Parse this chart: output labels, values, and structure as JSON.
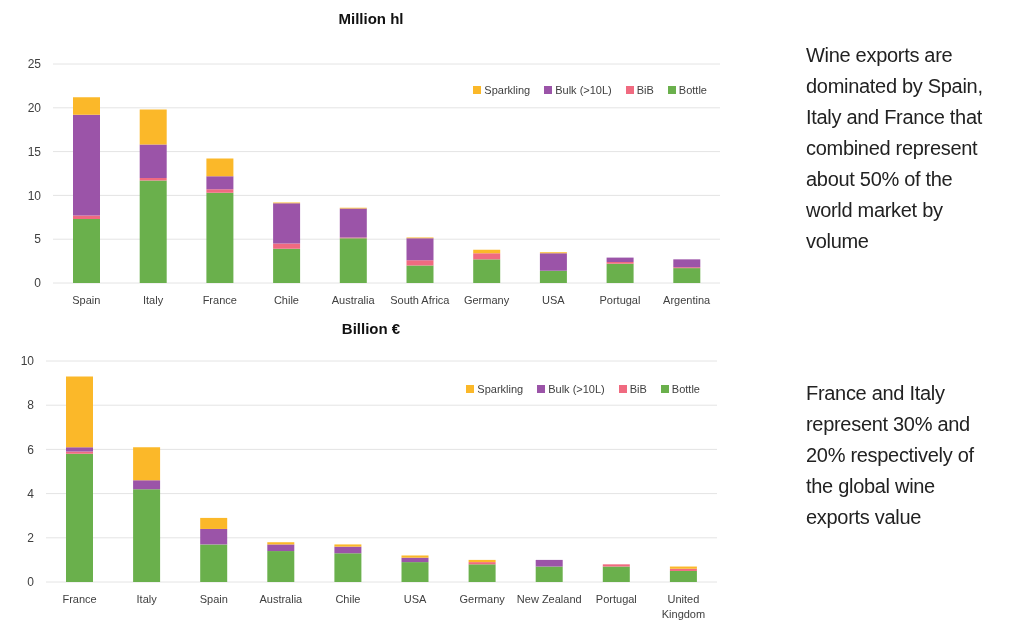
{
  "chart_data": [
    {
      "type": "bar",
      "stacked": true,
      "title": "Million hl",
      "categories": [
        "Spain",
        "Italy",
        "France",
        "Chile",
        "Australia",
        "South Africa",
        "Germany",
        "USA",
        "Portugal",
        "Argentina"
      ],
      "series": [
        {
          "name": "Bottle",
          "color": "#6ab04c",
          "values": [
            7.3,
            11.7,
            10.3,
            3.9,
            5.1,
            2.0,
            2.7,
            1.4,
            2.2,
            1.7
          ]
        },
        {
          "name": "BiB",
          "color": "#f06a80",
          "values": [
            0.4,
            0.3,
            0.4,
            0.6,
            0.1,
            0.6,
            0.7,
            null,
            0.2,
            0.1
          ]
        },
        {
          "name": "Bulk (>10L)",
          "color": "#9b54a8",
          "values": [
            11.5,
            3.8,
            1.5,
            4.6,
            3.3,
            2.5,
            null,
            2.0,
            0.5,
            0.9
          ]
        },
        {
          "name": "Sparkling",
          "color": "#fbb829",
          "values": [
            2.0,
            4.0,
            2.0,
            0.1,
            0.1,
            0.1,
            0.4,
            0.1,
            null,
            null
          ]
        }
      ],
      "ylim": [
        0,
        25
      ],
      "yticks": [
        0,
        5,
        10,
        15,
        20,
        25
      ],
      "grid": "y",
      "legend": "top right",
      "annotations": [
        "Wine exports are dominated by Spain, Italy and France that combined represent about 50% of the world market by volume"
      ]
    },
    {
      "type": "bar",
      "stacked": true,
      "title": "Billion €",
      "categories": [
        "France",
        "Italy",
        "Spain",
        "Australia",
        "Chile",
        "USA",
        "Germany",
        "New Zealand",
        "Portugal",
        "United Kingdom"
      ],
      "series": [
        {
          "name": "Bottle",
          "color": "#6ab04c",
          "values": [
            5.8,
            4.2,
            1.7,
            1.4,
            1.3,
            0.9,
            0.8,
            0.7,
            0.7,
            0.5
          ]
        },
        {
          "name": "BiB",
          "color": "#f06a80",
          "values": [
            0.1,
            null,
            null,
            null,
            null,
            null,
            0.1,
            null,
            0.1,
            0.1
          ]
        },
        {
          "name": "Bulk (>10L)",
          "color": "#9b54a8",
          "values": [
            0.2,
            0.4,
            0.7,
            0.3,
            0.3,
            0.2,
            null,
            0.3,
            null,
            null
          ]
        },
        {
          "name": "Sparkling",
          "color": "#fbb829",
          "values": [
            3.2,
            1.5,
            0.5,
            0.1,
            0.1,
            0.1,
            0.1,
            null,
            null,
            0.1
          ]
        }
      ],
      "ylim": [
        0,
        10
      ],
      "yticks": [
        0,
        2,
        4,
        6,
        8,
        10
      ],
      "grid": "y",
      "legend": "top right",
      "annotations": [
        "France and Italy represent 30% and 20% respectively of the global wine exports value"
      ]
    }
  ]
}
